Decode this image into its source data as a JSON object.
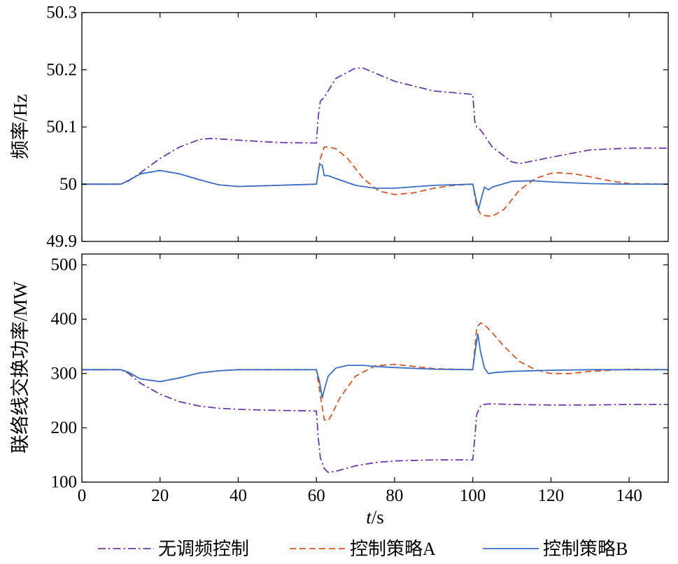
{
  "chart_data": [
    {
      "type": "line",
      "ylabel": "频率/Hz",
      "xlim": [
        0,
        150
      ],
      "ylim": [
        49.9,
        50.3
      ],
      "yticks": [
        49.9,
        50,
        50.1,
        50.2,
        50.3
      ],
      "yticklabels": [
        "49.9",
        "50",
        "50.1",
        "50.2",
        "50.3"
      ],
      "grid": false,
      "series": [
        {
          "name": "无调频控制",
          "color": "#6a3aa6",
          "style": "dashdot",
          "x": [
            0,
            10,
            12,
            15,
            20,
            25,
            30,
            33,
            40,
            50,
            60,
            60.5,
            61,
            62,
            65,
            70,
            72,
            80,
            90,
            100,
            100.5,
            101,
            102,
            105,
            110,
            112,
            120,
            130,
            140,
            150
          ],
          "y": [
            50.0,
            50.0,
            50.006,
            50.02,
            50.045,
            50.065,
            50.078,
            50.08,
            50.077,
            50.073,
            50.072,
            50.12,
            50.145,
            50.152,
            50.185,
            50.203,
            50.203,
            50.18,
            50.163,
            50.157,
            50.11,
            50.1,
            50.095,
            50.065,
            50.039,
            50.036,
            50.047,
            50.06,
            50.063,
            50.063
          ]
        },
        {
          "name": "控制策略A",
          "color": "#d4572a",
          "style": "dashed",
          "x": [
            0,
            10,
            12,
            15,
            20,
            25,
            30,
            35,
            40,
            50,
            60,
            61,
            62,
            63,
            65,
            68,
            72,
            76,
            80,
            85,
            90,
            95,
            100,
            101,
            102,
            103,
            105,
            108,
            112,
            116,
            120,
            122,
            126,
            130,
            135,
            140,
            150
          ],
          "y": [
            50.0,
            50.0,
            50.007,
            50.018,
            50.024,
            50.018,
            50.008,
            49.999,
            49.996,
            49.998,
            50.0,
            50.045,
            50.065,
            50.065,
            50.062,
            50.045,
            50.01,
            49.988,
            49.982,
            49.985,
            49.993,
            49.998,
            50.0,
            49.96,
            49.948,
            49.945,
            49.944,
            49.956,
            49.99,
            50.01,
            50.019,
            50.02,
            50.018,
            50.013,
            50.006,
            50.001,
            50.0
          ]
        },
        {
          "name": "控制策略B",
          "color": "#3a6fc4",
          "style": "solid",
          "x": [
            0,
            10,
            12,
            15,
            20,
            25,
            30,
            35,
            40,
            50,
            60,
            60.8,
            61.5,
            62,
            63,
            65,
            70,
            75,
            80,
            90,
            100,
            100.8,
            101.5,
            102,
            103,
            104,
            105,
            110,
            115,
            120,
            130,
            140,
            150
          ],
          "y": [
            50.0,
            50.0,
            50.007,
            50.018,
            50.024,
            50.018,
            50.008,
            49.999,
            49.996,
            49.998,
            50.0,
            50.035,
            50.033,
            50.015,
            50.015,
            50.01,
            49.998,
            49.993,
            49.993,
            49.998,
            50.0,
            49.975,
            49.956,
            49.97,
            49.995,
            49.99,
            49.995,
            50.005,
            50.006,
            50.004,
            50.001,
            50.0,
            50.0
          ]
        }
      ]
    },
    {
      "type": "line",
      "xlabel": "t/s",
      "ylabel": "联络线交换功率/MW",
      "xlim": [
        0,
        150
      ],
      "ylim": [
        100,
        520
      ],
      "xticks": [
        0,
        20,
        40,
        60,
        80,
        100,
        120,
        140
      ],
      "xticklabels": [
        "0",
        "20",
        "40",
        "60",
        "80",
        "100",
        "120",
        "140"
      ],
      "yticks": [
        100,
        200,
        300,
        400,
        500
      ],
      "yticklabels": [
        "100",
        "200",
        "300",
        "400",
        "500"
      ],
      "grid": false,
      "series": [
        {
          "name": "无调频控制",
          "color": "#6a3aa6",
          "style": "dashdot",
          "x": [
            0,
            10,
            12,
            15,
            20,
            25,
            30,
            35,
            40,
            50,
            60,
            60.5,
            61,
            62,
            63,
            65,
            70,
            75,
            80,
            90,
            100,
            100.5,
            101,
            102,
            103,
            104,
            105,
            110,
            120,
            130,
            140,
            150
          ],
          "y": [
            307,
            307,
            300,
            282,
            262,
            248,
            240,
            236,
            234,
            232,
            231,
            180,
            145,
            125,
            118,
            120,
            130,
            136,
            139,
            141,
            141,
            180,
            225,
            240,
            243,
            244,
            244,
            243,
            242,
            242,
            243,
            243
          ]
        },
        {
          "name": "控制策略A",
          "color": "#d4572a",
          "style": "dashed",
          "x": [
            0,
            10,
            12,
            15,
            20,
            25,
            30,
            35,
            40,
            50,
            60,
            61,
            62,
            63,
            64,
            66,
            70,
            75,
            80,
            90,
            100,
            100.5,
            101,
            102,
            103,
            105,
            108,
            112,
            116,
            120,
            125,
            130,
            140,
            150
          ],
          "y": [
            307,
            307,
            302,
            290,
            285,
            292,
            301,
            305,
            307,
            307,
            307,
            260,
            215,
            213,
            225,
            255,
            295,
            314,
            317,
            309,
            307,
            345,
            385,
            393,
            390,
            375,
            350,
            322,
            307,
            300,
            300,
            304,
            308,
            307
          ]
        },
        {
          "name": "控制策略B",
          "color": "#3a6fc4",
          "style": "solid",
          "x": [
            0,
            10,
            12,
            15,
            20,
            25,
            30,
            35,
            40,
            50,
            60,
            60.8,
            61.5,
            62,
            63,
            65,
            68,
            72,
            75,
            80,
            90,
            100,
            100.7,
            101.3,
            102,
            103,
            104,
            106,
            110,
            120,
            130,
            140,
            150
          ],
          "y": [
            307,
            307,
            302,
            290,
            285,
            292,
            301,
            305,
            307,
            307,
            307,
            285,
            255,
            270,
            295,
            310,
            315,
            315,
            313,
            311,
            308,
            307,
            345,
            373,
            340,
            310,
            300,
            302,
            304,
            306,
            307,
            307,
            307
          ]
        }
      ]
    }
  ],
  "legend": {
    "placement": "bottom",
    "items": [
      {
        "label": "无调频控制",
        "color": "#6a3aa6",
        "style": "dashdot"
      },
      {
        "label": "控制策略A",
        "color": "#d4572a",
        "style": "dashed"
      },
      {
        "label": "控制策略B",
        "color": "#3a6fc4",
        "style": "solid"
      }
    ]
  }
}
